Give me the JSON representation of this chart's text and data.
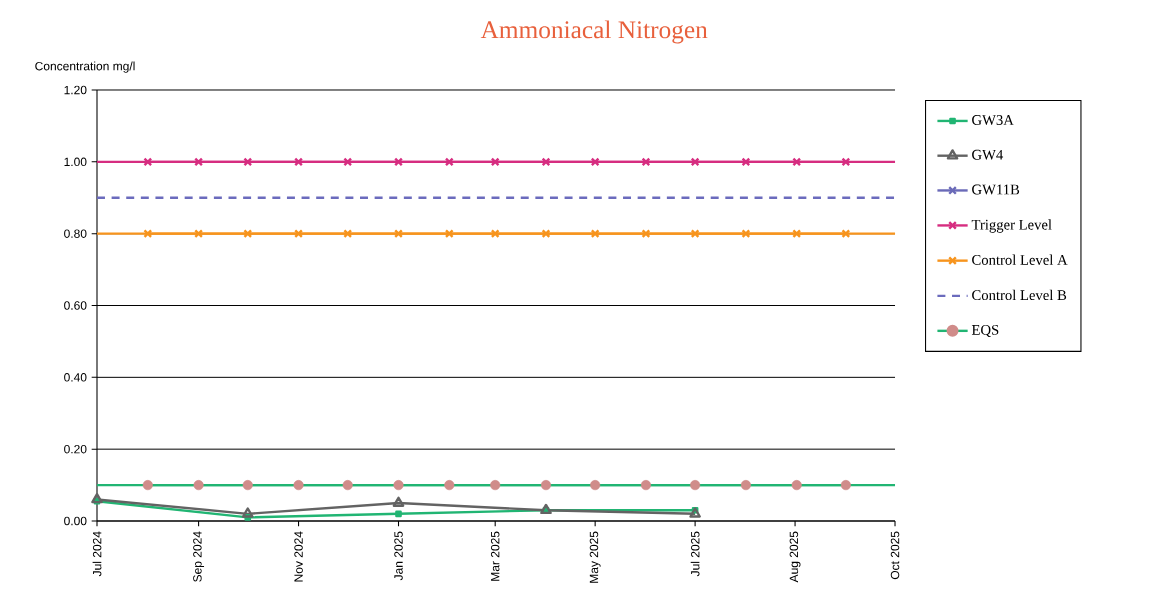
{
  "chart_data": {
    "type": "line",
    "title": "Ammoniacal Nitrogen",
    "ylabel": "Concentration mg/l",
    "x": [
      "2024-08-01",
      "2024-09-01",
      "2024-10-01",
      "2024-11-01",
      "2024-12-01",
      "2025-01-01",
      "2025-02-01",
      "2025-03-01",
      "2025-04-01",
      "2025-05-01",
      "2025-06-01",
      "2025-07-01",
      "2025-08-01",
      "2025-09-01",
      "2025-10-01"
    ],
    "series": [
      {
        "name": "GW3A",
        "color": "#21b573",
        "marker": "square",
        "x": [
          "2024-07-01",
          "2024-10-01",
          "2025-01-01",
          "2025-04-01",
          "2025-07-01"
        ],
        "values": [
          0.055,
          0.01,
          0.02,
          0.03,
          0.03
        ]
      },
      {
        "name": "GW4",
        "color": "#636363",
        "marker": "triangle",
        "x": [
          "2024-07-01",
          "2024-10-01",
          "2025-01-01",
          "2025-04-01",
          "2025-07-01"
        ],
        "values": [
          0.06,
          0.02,
          0.05,
          0.03,
          0.02
        ]
      },
      {
        "name": "GW11B",
        "color": "#6a6ab8",
        "marker": "cross",
        "values": [
          null,
          null,
          null,
          null,
          null,
          null,
          null,
          null,
          null,
          null,
          null,
          null,
          null,
          null,
          null
        ]
      },
      {
        "name": "Trigger Level",
        "color": "#d62d80",
        "marker": "cross",
        "values": [
          1,
          1,
          1,
          1,
          1,
          1,
          1,
          1,
          1,
          1,
          1,
          1,
          1,
          1,
          1
        ]
      },
      {
        "name": "Control Level A",
        "color": "#f7941d",
        "marker": "cross",
        "values": [
          0.8,
          0.8,
          0.8,
          0.8,
          0.8,
          0.8,
          0.8,
          0.8,
          0.8,
          0.8,
          0.8,
          0.8,
          0.8,
          0.8,
          0.8
        ]
      },
      {
        "name": "Control Level B",
        "color": "#6b6bbd",
        "marker": "none",
        "line_style": "dashed",
        "x": [
          "2024-07-01",
          "2025-10-31"
        ],
        "values": [
          0.9,
          0.9
        ]
      },
      {
        "name": "EQS",
        "color": "#21b573",
        "marker": "circle",
        "colors": [
          "#d08c8a",
          "#d08c8a",
          "#d08c8a",
          "#d08c8a",
          "#d08c8a",
          "#d08c8a",
          "#d08c8a",
          "#d08c8a",
          "#d08c8a",
          "#d08c8a",
          "#d08c8a",
          "#d08c8a",
          "#d08c8a",
          "#d08c8a",
          "#d08c8a"
        ],
        "values": [
          0.1,
          0.1,
          0.1,
          0.1,
          0.1,
          0.1,
          0.1,
          0.1,
          0.1,
          0.1,
          0.1,
          0.1,
          0.1,
          0.1,
          0.1
        ]
      }
    ],
    "ref_lines": [
      {
        "axis": "y",
        "value": 1.0,
        "color": "#d62d80"
      },
      {
        "axis": "y",
        "value": 0.8,
        "color": "#f7941d"
      },
      {
        "axis": "y",
        "value": 0.1,
        "color": "#21b573"
      }
    ],
    "xlim": [
      "2024-07-01",
      "2025-10-31"
    ],
    "xticks": [
      {
        "value": "2024-07-01",
        "label": "Jul 2024"
      },
      {
        "value": "2024-09-01",
        "label": "Sep 2024"
      },
      {
        "value": "2024-11-01",
        "label": "Nov 2024"
      },
      {
        "value": "2025-01-01",
        "label": "Jan 2025"
      },
      {
        "value": "2025-03-01",
        "label": "Mar 2025"
      },
      {
        "value": "2025-05-01",
        "label": "May 2025"
      },
      {
        "value": "2025-07-01",
        "label": "Jul 2025"
      },
      {
        "value": "2025-08-31",
        "label": "Aug 2025"
      },
      {
        "value": "2025-10-31",
        "label": "Oct 2025"
      }
    ],
    "ylim": [
      0,
      1.2
    ],
    "yticks": [
      {
        "value": 0,
        "label": "0.00"
      },
      {
        "value": 0.2,
        "label": "0.20"
      },
      {
        "value": 0.4,
        "label": "0.40"
      },
      {
        "value": 0.6,
        "label": "0.60"
      },
      {
        "value": 0.8,
        "label": "0.80"
      },
      {
        "value": 1.0,
        "label": "1.00"
      },
      {
        "value": 1.2,
        "label": "1.20"
      }
    ],
    "grid": "y",
    "legend": "right"
  }
}
